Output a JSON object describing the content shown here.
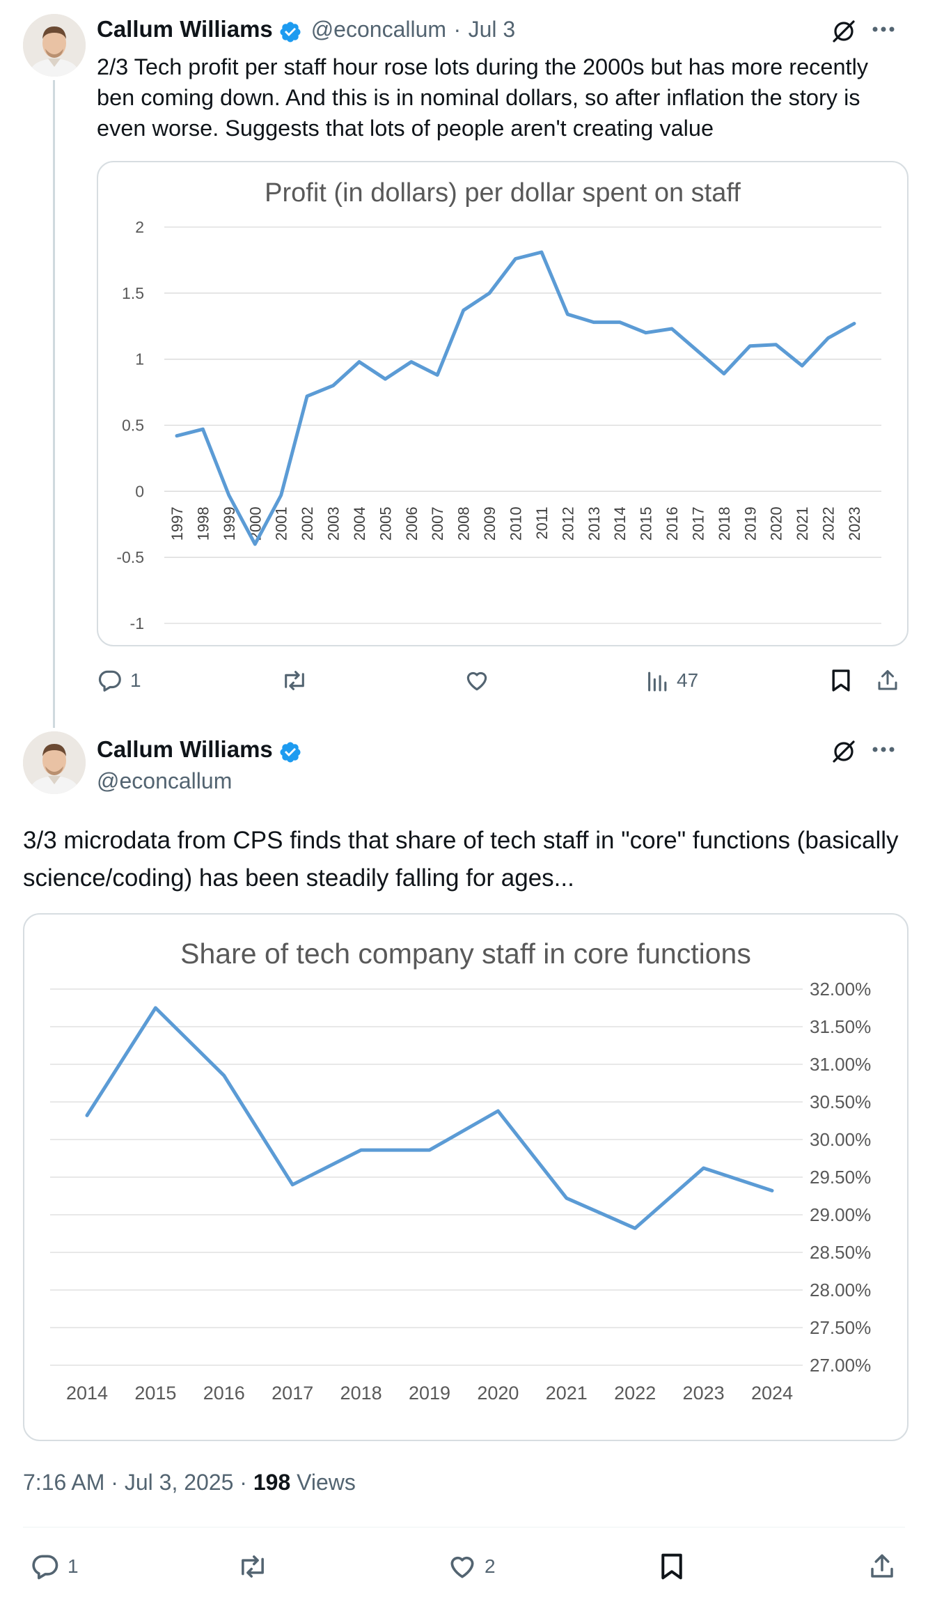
{
  "tweet1": {
    "author": "Callum Williams",
    "handle": "@econcallum",
    "date_sep": "·",
    "date": "Jul 3",
    "text": "2/3 Tech profit per staff hour rose lots during the 2000s but has more recently ben coming down. And this is in nominal dollars, so after inflation the story is even worse. Suggests that lots of people aren't creating value",
    "actions": {
      "replies": "1",
      "reposts": "",
      "likes": "",
      "views": "47"
    }
  },
  "tweet2": {
    "author": "Callum Williams",
    "handle": "@econcallum",
    "text": "3/3 microdata from CPS finds that share of tech staff in \"core\" functions (basically science/coding) has been steadily falling for ages...",
    "time": "7:16 AM · Jul 3, 2025 · ",
    "views_count": "198",
    "views_label": " Views",
    "actions": {
      "replies": "1",
      "reposts": "",
      "likes": "2"
    }
  },
  "icons": [
    "verified-icon",
    "grok-icon",
    "more-icon",
    "reply-icon",
    "repost-icon",
    "like-icon",
    "views-icon",
    "bookmark-icon",
    "share-icon"
  ],
  "colors": {
    "line": "#5b9bd5",
    "verified": "#1d9bf0",
    "grid": "#d9d9d9",
    "muted": "#536471"
  },
  "chart_data": [
    {
      "type": "line",
      "title": "Profit (in dollars) per dollar spent on staff",
      "categories": [
        "1997",
        "1998",
        "1999",
        "2000",
        "2001",
        "2002",
        "2003",
        "2004",
        "2005",
        "2006",
        "2007",
        "2008",
        "2009",
        "2010",
        "2011",
        "2012",
        "2013",
        "2014",
        "2015",
        "2016",
        "2017",
        "2018",
        "2019",
        "2020",
        "2021",
        "2022",
        "2023"
      ],
      "values": [
        0.42,
        0.47,
        -0.03,
        -0.4,
        -0.03,
        0.72,
        0.8,
        0.98,
        0.85,
        0.98,
        0.88,
        1.37,
        1.5,
        1.76,
        1.81,
        1.34,
        1.28,
        1.28,
        1.2,
        1.23,
        1.06,
        0.89,
        1.1,
        1.11,
        0.95,
        1.16,
        1.27
      ],
      "y_ticks": [
        "2",
        "1.5",
        "1",
        "0.5",
        "0",
        "-0.5",
        "-1"
      ],
      "ylim": [
        -1,
        2
      ],
      "grid": true,
      "legend": "none"
    },
    {
      "type": "line",
      "title": "Share of tech company staff in core functions",
      "categories": [
        "2014",
        "2015",
        "2016",
        "2017",
        "2018",
        "2019",
        "2020",
        "2021",
        "2022",
        "2023",
        "2024"
      ],
      "values": [
        30.32,
        31.75,
        30.85,
        29.4,
        29.86,
        29.86,
        30.38,
        29.22,
        28.82,
        29.62,
        29.32
      ],
      "y_ticks": [
        "32.00%",
        "31.50%",
        "31.00%",
        "30.50%",
        "30.00%",
        "29.50%",
        "29.00%",
        "28.50%",
        "28.00%",
        "27.50%",
        "27.00%"
      ],
      "ylim": [
        27,
        32
      ],
      "y_axis_side": "right",
      "grid": true,
      "legend": "none"
    }
  ]
}
